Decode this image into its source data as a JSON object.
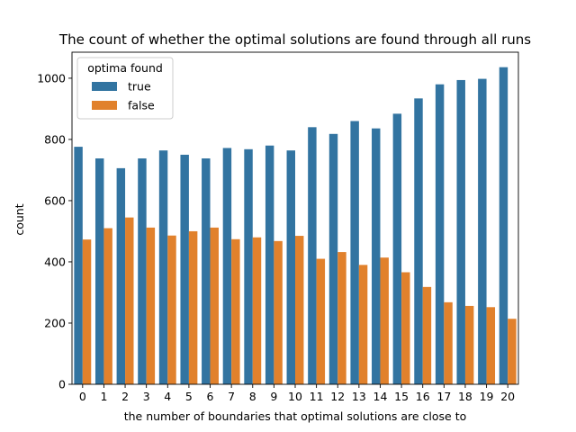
{
  "chart_data": {
    "type": "bar",
    "title": "The count of whether the optimal solutions are found through all runs",
    "xlabel": "the number of boundaries that optimal solutions are close to",
    "ylabel": "count",
    "categories": [
      "0",
      "1",
      "2",
      "3",
      "4",
      "5",
      "6",
      "7",
      "8",
      "9",
      "10",
      "11",
      "12",
      "13",
      "14",
      "15",
      "16",
      "17",
      "18",
      "19",
      "20"
    ],
    "ylim": [
      0,
      1085
    ],
    "yticks": [
      0,
      200,
      400,
      600,
      800,
      1000
    ],
    "grid": false,
    "legend": {
      "title": "optima found",
      "position": "top-left"
    },
    "series": [
      {
        "name": "true",
        "color": "#3274a1",
        "values": [
          776,
          738,
          706,
          738,
          764,
          750,
          738,
          772,
          768,
          780,
          764,
          840,
          818,
          860,
          836,
          884,
          934,
          980,
          994,
          998,
          1036
        ]
      },
      {
        "name": "false",
        "color": "#e1812c",
        "values": [
          473,
          510,
          545,
          512,
          486,
          500,
          512,
          474,
          480,
          468,
          485,
          410,
          432,
          390,
          414,
          366,
          318,
          268,
          256,
          252,
          214
        ]
      }
    ]
  }
}
